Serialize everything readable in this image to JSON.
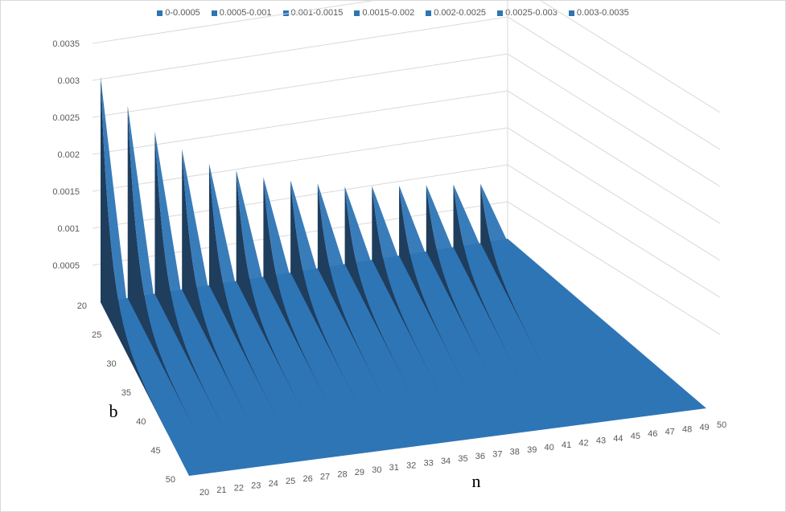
{
  "chart_data": {
    "type": "surface-3d",
    "title": "",
    "legend": [
      {
        "label": "0-0.0005",
        "color": "#2e75b6"
      },
      {
        "label": "0.0005-0.001",
        "color": "#2e75b6"
      },
      {
        "label": "0.001-0.0015",
        "color": "#2e75b6"
      },
      {
        "label": "0.0015-0.002",
        "color": "#2e75b6"
      },
      {
        "label": "0.002-0.0025",
        "color": "#2e75b6"
      },
      {
        "label": "0.0025-0.003",
        "color": "#2e75b6"
      },
      {
        "label": "0.003-0.0035",
        "color": "#2e75b6"
      }
    ],
    "legend_position": "top",
    "x_axis": {
      "label": "n",
      "ticks": [
        20,
        21,
        22,
        23,
        24,
        25,
        26,
        27,
        28,
        29,
        30,
        31,
        32,
        33,
        34,
        35,
        36,
        37,
        38,
        39,
        40,
        41,
        42,
        43,
        44,
        45,
        46,
        47,
        48,
        49,
        50
      ]
    },
    "depth_axis": {
      "label": "b",
      "ticks": [
        20,
        25,
        30,
        35,
        40,
        45,
        50
      ]
    },
    "z_axis": {
      "ticks": [
        "0",
        "0.0005",
        "0.001",
        "0.0015",
        "0.002",
        "0.0025",
        "0.003",
        "0.0035"
      ],
      "range": [
        0,
        0.0035
      ]
    },
    "gridlines": true,
    "series": [
      {
        "n": 20,
        "peak": 0.00305
      },
      {
        "n": 22,
        "peak": 0.0026
      },
      {
        "n": 24,
        "peak": 0.0022
      },
      {
        "n": 26,
        "peak": 0.0019
      },
      {
        "n": 28,
        "peak": 0.00165
      },
      {
        "n": 30,
        "peak": 0.0015
      },
      {
        "n": 32,
        "peak": 0.00135
      },
      {
        "n": 34,
        "peak": 0.00125
      },
      {
        "n": 36,
        "peak": 0.00115
      },
      {
        "n": 38,
        "peak": 0.00105
      },
      {
        "n": 40,
        "peak": 0.001
      },
      {
        "n": 42,
        "peak": 0.00095
      },
      {
        "n": 44,
        "peak": 0.0009
      },
      {
        "n": 46,
        "peak": 0.00085
      },
      {
        "n": 48,
        "peak": 0.0008
      }
    ],
    "surface_color": "#2e75b6",
    "shadow_color": "#1f3d5c"
  }
}
